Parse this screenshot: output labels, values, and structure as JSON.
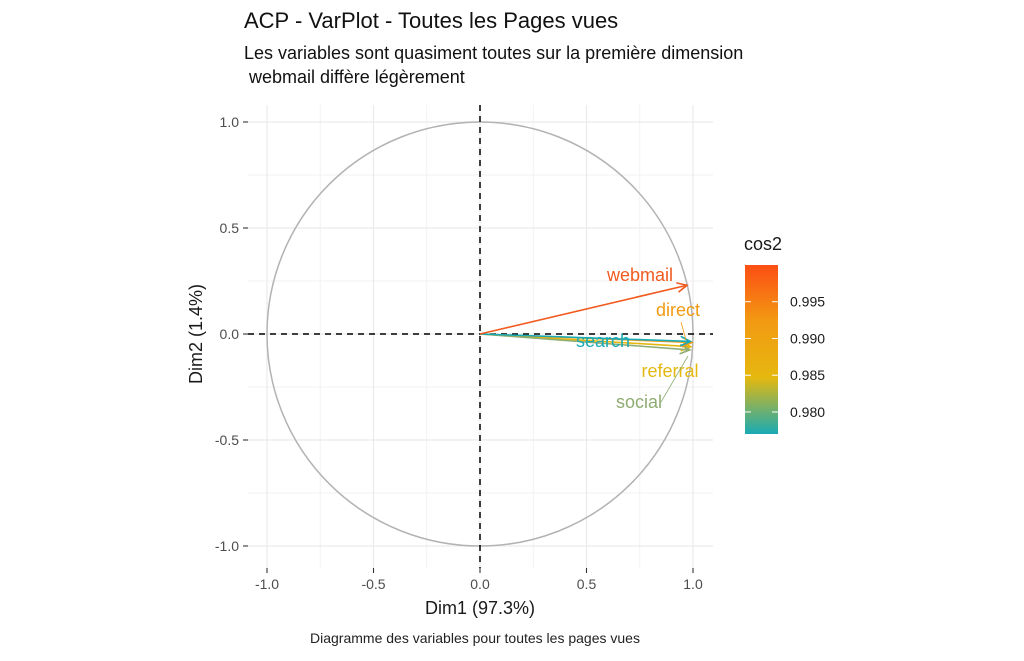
{
  "chart_data": {
    "type": "scatter",
    "title": "ACP - VarPlot - Toutes les Pages vues",
    "subtitle_lines": [
      "Les variables sont quasiment toutes sur la première dimension",
      " webmail diffère légèrement"
    ],
    "caption": "Diagramme des variables pour toutes les pages vues",
    "xlabel": "Dim1 (97.3%)",
    "ylabel": "Dim2 (1.4%)",
    "xlim": [
      -1.0,
      1.0
    ],
    "ylim": [
      -1.0,
      1.0
    ],
    "x_ticks": [
      -1.0,
      -0.5,
      0.0,
      0.5,
      1.0
    ],
    "x_tick_labels": [
      "-1.0",
      "-0.5",
      "0.0",
      "0.5",
      "1.0"
    ],
    "y_ticks": [
      -1.0,
      -0.5,
      0.0,
      0.5,
      1.0
    ],
    "y_tick_labels": [
      "-1.0",
      "-0.5",
      "0.0",
      "0.5",
      "1.0"
    ],
    "grid": true,
    "correlation_circle": true,
    "variables": [
      {
        "name": "webmail",
        "x": 0.972,
        "y": 0.23,
        "cos2": 0.9995,
        "color": "#f15a1e"
      },
      {
        "name": "direct",
        "x": 0.995,
        "y": -0.04,
        "cos2": 0.9925,
        "color": "#f29a12"
      },
      {
        "name": "search",
        "x": 0.988,
        "y": -0.035,
        "cos2": 0.977,
        "color": "#19aab5"
      },
      {
        "name": "referral",
        "x": 0.99,
        "y": -0.06,
        "cos2": 0.989,
        "color": "#e5b80f"
      },
      {
        "name": "social",
        "x": 0.985,
        "y": -0.075,
        "cos2": 0.983,
        "color": "#8fac72"
      }
    ],
    "legend": {
      "title": "cos2",
      "position": "right",
      "ticks": [
        0.995,
        0.99,
        0.985,
        0.98
      ],
      "tick_labels": [
        "0.995",
        "0.990",
        "0.985",
        "0.980"
      ],
      "range": [
        0.977,
        1.0
      ],
      "gradient_colors": [
        "#19aab5",
        "#e5b80f",
        "#f29a12",
        "#fc4e14"
      ]
    }
  }
}
